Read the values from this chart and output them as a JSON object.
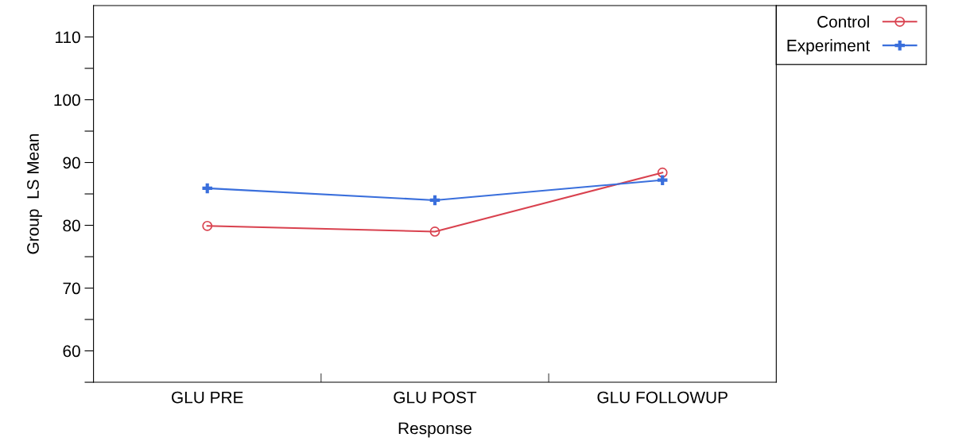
{
  "chart_data": {
    "type": "line",
    "xlabel": "Response",
    "ylabel": "Group  LS Mean",
    "categories": [
      "GLU PRE",
      "GLU POST",
      "GLU FOLLOWUP"
    ],
    "series": [
      {
        "name": "Control",
        "color": "#d9424f",
        "marker": "circle",
        "values": [
          79.9,
          79.0,
          88.4
        ]
      },
      {
        "name": "Experiment",
        "color": "#3a6fdc",
        "marker": "cross",
        "values": [
          85.9,
          84.0,
          87.2
        ]
      }
    ],
    "ylim": [
      55,
      115
    ],
    "yticks": [
      {
        "value": 55,
        "label": null
      },
      60,
      {
        "value": 65,
        "label": null
      },
      70,
      {
        "value": 75,
        "label": null
      },
      80,
      {
        "value": 85,
        "label": null
      },
      90,
      {
        "value": 95,
        "label": null
      },
      100,
      {
        "value": 105,
        "label": null
      },
      110
    ],
    "grid": false,
    "legend": "top right",
    "line_style": "solid"
  }
}
